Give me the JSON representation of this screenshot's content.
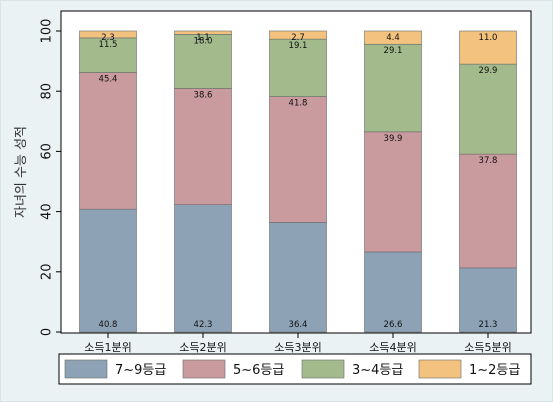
{
  "chart_data": {
    "type": "bar",
    "stacked": true,
    "ylabel": "자녀의 수능 성적",
    "xlabel": "",
    "ylim": [
      0,
      100
    ],
    "yticks": [
      0,
      20,
      40,
      60,
      80,
      100
    ],
    "grid": false,
    "legend_position": "bottom",
    "categories": [
      "소득1분위",
      "소득2분위",
      "소득3분위",
      "소득4분위",
      "소득5분위"
    ],
    "series": [
      {
        "name": "7~9등급",
        "color": "#8da2b4",
        "values": [
          40.8,
          42.3,
          36.4,
          26.6,
          21.3
        ]
      },
      {
        "name": "5~6등급",
        "color": "#c99a9e",
        "values": [
          45.4,
          38.6,
          41.8,
          39.9,
          37.8
        ]
      },
      {
        "name": "3~4등급",
        "color": "#a3bb8c",
        "values": [
          11.5,
          18.0,
          19.1,
          29.1,
          29.9
        ]
      },
      {
        "name": "1~2등급",
        "color": "#f2c27e",
        "values": [
          2.3,
          1.1,
          2.7,
          4.4,
          11.0
        ]
      }
    ]
  }
}
